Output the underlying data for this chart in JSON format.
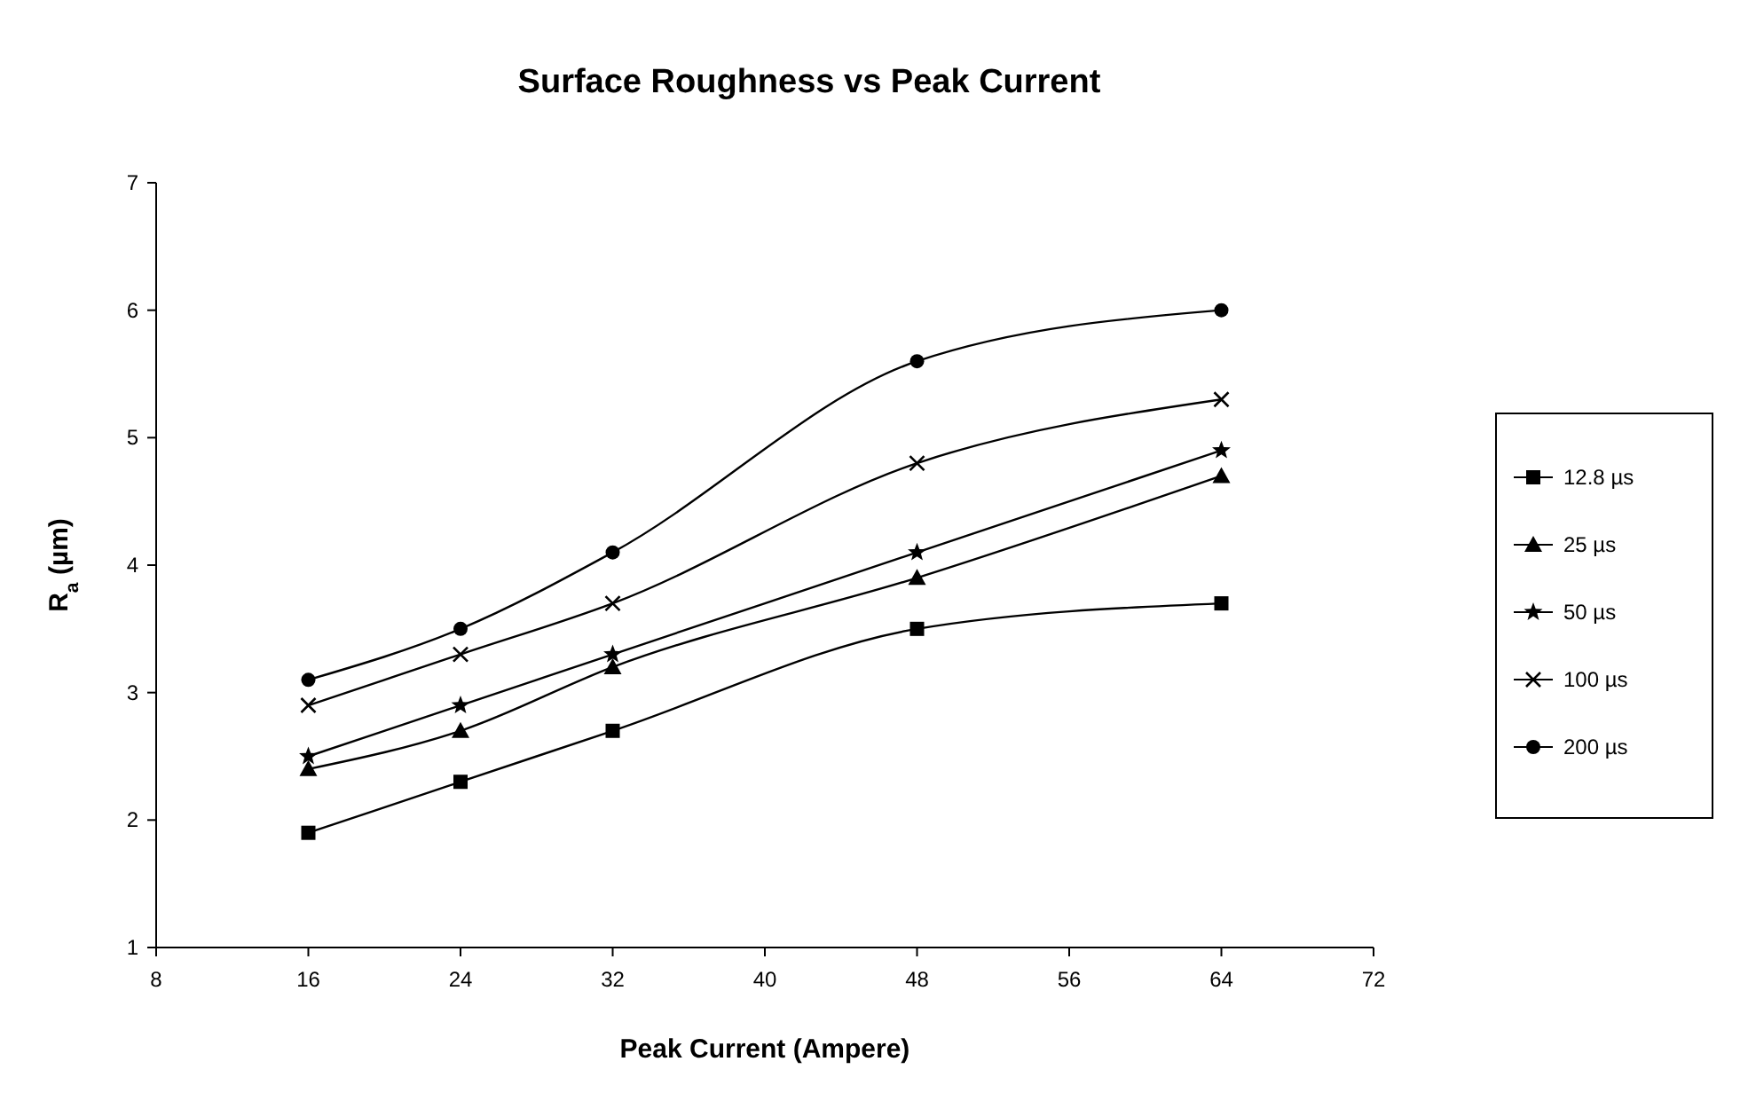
{
  "chart_data": {
    "type": "line",
    "title": "Surface Roughness vs Peak Current",
    "xlabel": "Peak Current (Ampere)",
    "ylabel": "R$_{a}$ (µm)",
    "x": [
      16,
      24,
      32,
      48,
      64
    ],
    "series": [
      {
        "name": "12.8 µs",
        "color": "#000000",
        "marker": "square",
        "values": [
          1.9,
          2.3,
          2.7,
          3.5,
          3.7
        ]
      },
      {
        "name": "25 µs",
        "color": "#000000",
        "marker": "triangle",
        "values": [
          2.4,
          2.7,
          3.2,
          3.9,
          4.7
        ]
      },
      {
        "name": "50 µs",
        "color": "#000000",
        "marker": "star",
        "values": [
          2.5,
          2.9,
          3.3,
          4.1,
          4.9
        ]
      },
      {
        "name": "100 µs",
        "color": "#000000",
        "marker": "cross",
        "values": [
          2.9,
          3.3,
          3.7,
          4.8,
          5.3
        ]
      },
      {
        "name": "200 µs",
        "color": "#000000",
        "marker": "circle",
        "values": [
          3.1,
          3.5,
          4.1,
          5.6,
          6.0
        ]
      }
    ],
    "xlim": [
      8,
      72
    ],
    "xticks": [
      8,
      16,
      24,
      32,
      40,
      48,
      56,
      64,
      72
    ],
    "ylim": [
      1,
      7
    ],
    "yticks": [
      1,
      2,
      3,
      4,
      5,
      6,
      7
    ],
    "grid": false,
    "legend": "right",
    "line_style": "solid"
  }
}
